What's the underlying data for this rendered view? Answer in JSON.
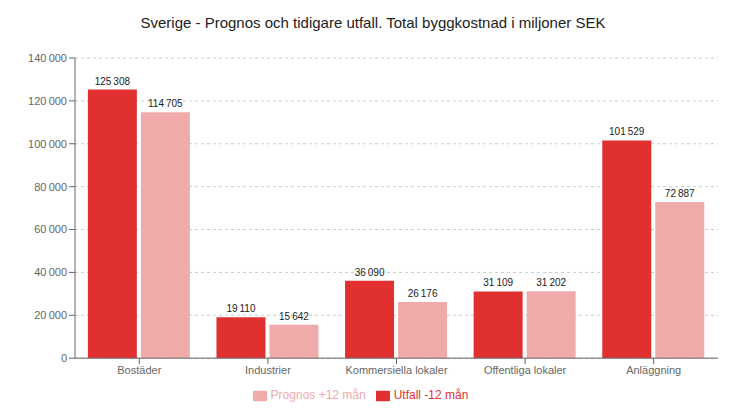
{
  "chart_data": {
    "type": "bar",
    "title": "Sverige - Prognos och tidigare utfall. Total byggkostnad i miljoner SEK",
    "categories": [
      "Bostäder",
      "Industrier",
      "Kommersiella lokaler",
      "Offentliga lokaler",
      "Anläggning"
    ],
    "series": [
      {
        "name": "Utfall -12 mån",
        "color": "#e03030",
        "values": [
          125308,
          19110,
          36090,
          31109,
          101529
        ],
        "value_labels": [
          "125 308",
          "19 110",
          "36 090",
          "31 109",
          "101 529"
        ]
      },
      {
        "name": "Prognos +12 mån",
        "color": "#f0aaaa",
        "values": [
          114705,
          15642,
          26176,
          31202,
          72887
        ],
        "value_labels": [
          "114 705",
          "15 642",
          "26 176",
          "31 202",
          "72 887"
        ]
      }
    ],
    "ylim": [
      0,
      140000
    ],
    "yticks": [
      0,
      {
        "value": 20000,
        "label": "20 000"
      },
      {
        "value": 40000,
        "label": "40 000"
      },
      {
        "value": 60000,
        "label": "60 000"
      },
      {
        "value": 80000,
        "label": "80 000"
      },
      {
        "value": 100000,
        "label": "100 000"
      },
      {
        "value": 120000,
        "label": "120 000"
      },
      {
        "value": 140000,
        "label": "140 000"
      }
    ],
    "grid": true,
    "data_labels": true,
    "legend": "bottom"
  }
}
